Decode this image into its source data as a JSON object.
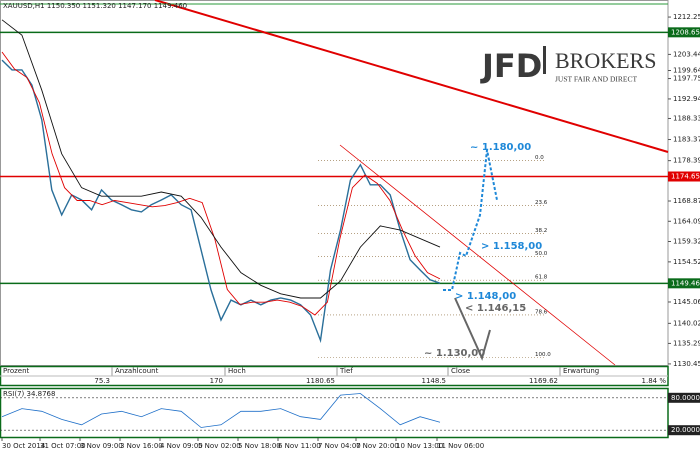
{
  "chart_data": {
    "type": "line",
    "title": "XAUUSD,H1  1150.350 1151.320 1147.170 1149.460",
    "ylim": [
      1130.2,
      1215.8
    ],
    "yticks": [
      {
        "value": 1212.25,
        "label": "1212.250"
      },
      {
        "value": 1203.445,
        "label": "1203.445"
      },
      {
        "value": 1199.645,
        "label": "1199.645"
      },
      {
        "value": 1197.75,
        "label": "1197.750"
      },
      {
        "value": 1192.945,
        "label": "1192.945"
      },
      {
        "value": 1188.335,
        "label": "1188.335"
      },
      {
        "value": 1183.37,
        "label": "1183.370"
      },
      {
        "value": 1178.39,
        "label": "1178.390"
      },
      {
        "value": 1168.87,
        "label": "1168.870"
      },
      {
        "value": 1164.09,
        "label": "1164.090"
      },
      {
        "value": 1159.32,
        "label": "1159.320"
      },
      {
        "value": 1154.52,
        "label": "1154.520"
      },
      {
        "value": 1145.06,
        "label": "1145.060"
      },
      {
        "value": 1140.02,
        "label": "1140.020"
      },
      {
        "value": 1135.29,
        "label": "1135.290"
      },
      {
        "value": 1130.455,
        "label": "1130.455"
      }
    ],
    "levels": [
      {
        "value": 1208.65,
        "label": "1208.650",
        "color": "#0a6b1a"
      },
      {
        "value": 1174.65,
        "label": "1174.650",
        "color": "#e00000"
      },
      {
        "value": 1149.46,
        "label": "1149.460",
        "color": "#0a6b1a"
      }
    ],
    "x_labels": [
      "30 Oct 2014",
      "31 Oct 07:00",
      "3 Nov 09:00",
      "3 Nov 16:00",
      "4 Nov 09:00",
      "5 Nov 02:00",
      "5 Nov 18:00",
      "6 Nov 11:00",
      "7 Nov 04:00",
      "7 Nov 20:00",
      "10 Nov 13:00",
      "11 Nov 06:00"
    ],
    "series": [
      {
        "color": "#2a6f9a",
        "values": [
          1202.1,
          1199.8,
          1199.8,
          1196.2,
          1188,
          1171.5,
          1165.6,
          1170.3,
          1169.1,
          1166.8,
          1171.5,
          1169.1,
          1168,
          1166.8,
          1166.3,
          1168,
          1169.1,
          1170.3,
          1168,
          1166.8,
          1157.3,
          1147.9,
          1140.8,
          1145.5,
          1144.4,
          1145.5,
          1144.4,
          1145.5,
          1146,
          1145.5,
          1144.4,
          1142,
          1136,
          1152.6,
          1162,
          1173.8,
          1177.4,
          1172.7,
          1172.7,
          1170.3,
          1162,
          1155,
          1152.6,
          1150.3,
          1149.5
        ]
      },
      {
        "color": "#e00000",
        "values": [
          1204,
          1200,
          1198,
          1192,
          1180,
          1172,
          1169,
          1169,
          1168,
          1169,
          1168.5,
          1168,
          1167.5,
          1167.8,
          1168.5,
          1169.5,
          1168.5,
          1160,
          1148,
          1144.5,
          1145,
          1145,
          1145.5,
          1145,
          1144,
          1142,
          1145,
          1160,
          1172,
          1175,
          1173,
          1169,
          1162,
          1156,
          1152,
          1150.5
        ]
      },
      {
        "color": "#111111",
        "values": [
          1211.6,
          1208,
          1195,
          1180,
          1172,
          1170,
          1170,
          1170,
          1171,
          1170,
          1165,
          1158,
          1152,
          1149,
          1147,
          1146,
          1146,
          1150,
          1158,
          1163,
          1162,
          1160,
          1158
        ]
      }
    ],
    "fib_levels": [
      {
        "label": "0.0",
        "value": 1178.4
      },
      {
        "label": "23.6",
        "value": 1167.8
      },
      {
        "label": "38.2",
        "value": 1161.2
      },
      {
        "label": "50.0",
        "value": 1155.8
      },
      {
        "label": "61.8",
        "value": 1150.2
      },
      {
        "label": "78.6",
        "value": 1142
      },
      {
        "label": "100.0",
        "value": 1132
      }
    ],
    "annotations": [
      {
        "text": "~ 1.180,00",
        "color": "#1e88d8"
      },
      {
        "text": "> 1.158,00",
        "color": "#1e88d8"
      },
      {
        "text": "> 1.148,00",
        "color": "#1e88d8"
      },
      {
        "text": "< 1.146,15",
        "color": "#666666"
      },
      {
        "text": "~ 1.130,00",
        "color": "#666666"
      }
    ],
    "rsi": {
      "label": "RSI(7) 34.8768",
      "ylim": [
        0,
        100
      ],
      "levels": [
        {
          "value": 80,
          "label": "80.0000"
        },
        {
          "value": 20,
          "label": "20.0000"
        }
      ],
      "values": [
        45,
        60,
        55,
        40,
        30,
        50,
        55,
        45,
        60,
        55,
        25,
        30,
        55,
        55,
        60,
        45,
        40,
        85,
        88,
        60,
        30,
        45,
        34.88
      ]
    }
  },
  "table": {
    "headers": [
      "Prozent",
      "Anzahlcount",
      "Hoch",
      "Tief",
      "Close",
      "Erwartung"
    ],
    "values": [
      "75.3",
      "170",
      "1180.65",
      "1148.5",
      "1169.62",
      "1.84 %"
    ]
  },
  "logo": {
    "brand": "JFD",
    "name": "BROKERS",
    "tagline": "JUST FAIR AND DIRECT"
  }
}
